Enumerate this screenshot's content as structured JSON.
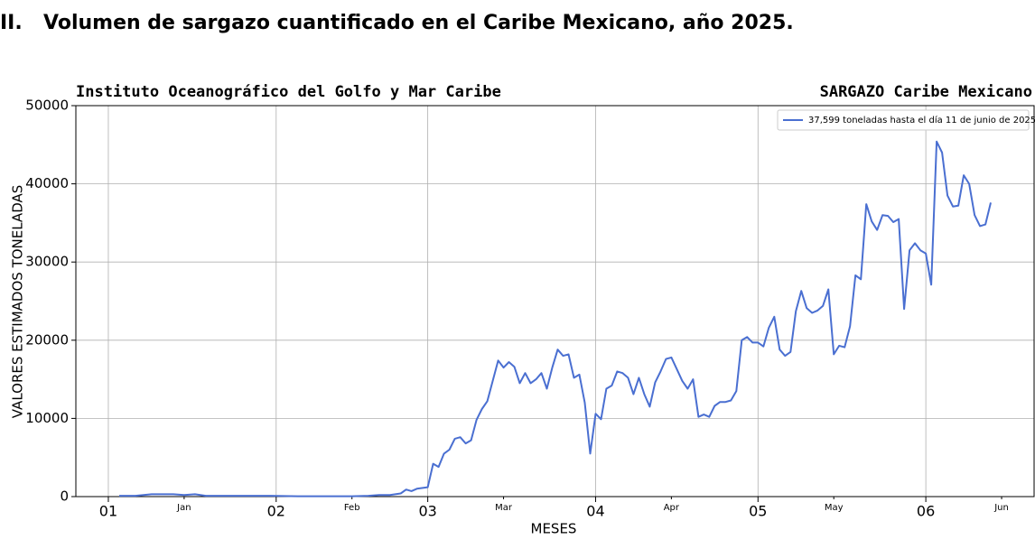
{
  "heading": {
    "number": "II.",
    "title": "Volumen de sargazo cuantificado en el Caribe Mexicano, año 2025."
  },
  "chart_data": {
    "type": "line",
    "title": "Instituto Oceanográfico del Golfo y Mar Caribe",
    "subtitle": "SARGAZO Caribe Mexicano",
    "x_label": "MESES",
    "y_label": "VALORES ESTIMADOS TONELADAS",
    "xlim": [
      -6,
      171
    ],
    "ylim": [
      0,
      50000
    ],
    "xticks": [
      {
        "value": 0,
        "label": "01"
      },
      {
        "value": 31,
        "label": "02"
      },
      {
        "value": 59,
        "label": "03"
      },
      {
        "value": 90,
        "label": "04"
      },
      {
        "value": 120,
        "label": "05"
      },
      {
        "value": 151,
        "label": "06"
      }
    ],
    "xticks_minor": [
      {
        "value": 14,
        "label": "Jan"
      },
      {
        "value": 45,
        "label": "Feb"
      },
      {
        "value": 73,
        "label": "Mar"
      },
      {
        "value": 104,
        "label": "Apr"
      },
      {
        "value": 134,
        "label": "May"
      },
      {
        "value": 165,
        "label": "Jun"
      }
    ],
    "yticks": [
      0,
      10000,
      20000,
      30000,
      40000,
      50000
    ],
    "grid": true,
    "legend": "upper right",
    "x": [
      2,
      5,
      8,
      10,
      12,
      14,
      16,
      18,
      22,
      26,
      30,
      35,
      40,
      45,
      48,
      50,
      52,
      54,
      55,
      56,
      57,
      59,
      60,
      61,
      62,
      63,
      64,
      65,
      66,
      67,
      68,
      69,
      70,
      71,
      72,
      73,
      74,
      75,
      76,
      77,
      78,
      79,
      80,
      81,
      82,
      83,
      84,
      85,
      86,
      87,
      88,
      89,
      90,
      91,
      92,
      93,
      94,
      95,
      96,
      97,
      98,
      99,
      100,
      101,
      102,
      103,
      104,
      105,
      106,
      107,
      108,
      109,
      110,
      111,
      112,
      113,
      114,
      115,
      116,
      117,
      118,
      119,
      120,
      121,
      122,
      123,
      124,
      125,
      126,
      127,
      128,
      129,
      130,
      131,
      132,
      133,
      134,
      135,
      136,
      137,
      138,
      139,
      140,
      141,
      142,
      143,
      144,
      145,
      146,
      147,
      148,
      149,
      150,
      151,
      152,
      153,
      154,
      155,
      156,
      157,
      158,
      159,
      160,
      161,
      162,
      163
    ],
    "series": [
      {
        "name": "37,599 toneladas hasta el día 11 de junio de 2025",
        "color": "#4a6fd1",
        "values": [
          100,
          100,
          300,
          300,
          300,
          200,
          300,
          100,
          100,
          100,
          100,
          50,
          50,
          50,
          100,
          200,
          200,
          400,
          900,
          700,
          1000,
          1200,
          4200,
          3800,
          5500,
          6000,
          7400,
          7600,
          6800,
          7200,
          9800,
          11200,
          12200,
          14800,
          17400,
          16500,
          17200,
          16600,
          14500,
          15800,
          14500,
          15000,
          15800,
          13800,
          16500,
          18800,
          18000,
          18200,
          15200,
          15600,
          12000,
          5500,
          10600,
          9900,
          13800,
          14200,
          16000,
          15800,
          15200,
          13100,
          15200,
          13100,
          11500,
          14600,
          16000,
          17600,
          17800,
          16300,
          14800,
          13800,
          15000,
          10200,
          10500,
          10200,
          11600,
          12100,
          12100,
          12300,
          13500,
          20000,
          20400,
          19700,
          19700,
          19200,
          21600,
          23000,
          18800,
          18000,
          18500,
          23700,
          26300,
          24100,
          23500,
          23800,
          24400,
          26500,
          18200,
          19300,
          19100,
          21800,
          28300,
          27800,
          37400,
          35200,
          34100,
          36000,
          35900,
          35100,
          35500,
          24000,
          31500,
          32400,
          31500,
          31100,
          27100,
          45400,
          44000,
          38500,
          37100,
          37200,
          41100,
          40000,
          36000,
          34600,
          34800,
          37600
        ]
      }
    ]
  }
}
